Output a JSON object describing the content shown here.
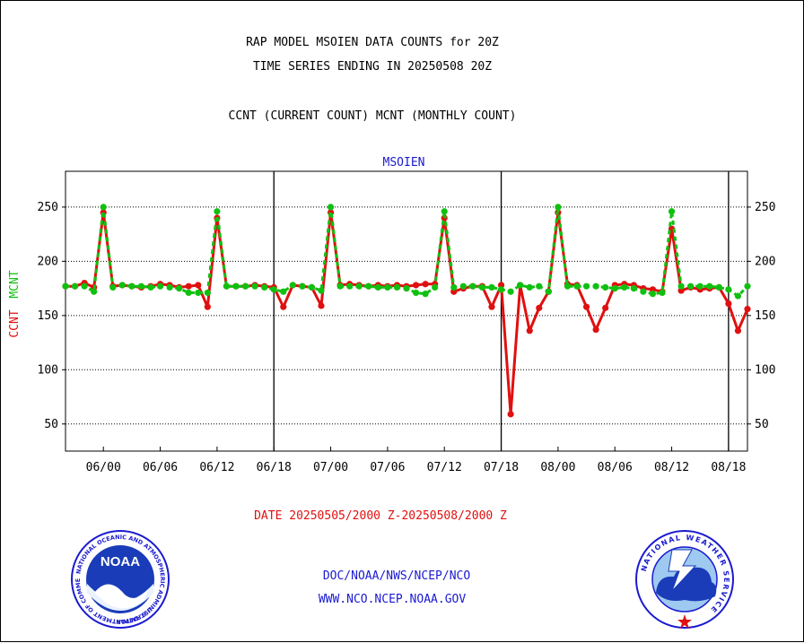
{
  "header": {
    "title_line1": "RAP MODEL MSOIEN DATA COUNTS for 20Z",
    "title_line2": "TIME SERIES ENDING IN 20250508 20Z",
    "subtitle": "CCNT (CURRENT COUNT) MCNT (MONTHLY COUNT)"
  },
  "footer": {
    "date_range": "DATE 20250505/2000 Z-20250508/2000 Z",
    "org_line": "DOC/NOAA/NWS/NCEP/NCO",
    "url_line": "WWW.NCO.NCEP.NOAA.GOV"
  },
  "logos": {
    "noaa_text": "NOAA",
    "noaa_ring": "NATIONAL OCEANIC AND ATMOSPHERIC ADMINISTRATION",
    "noaa_ring_bottom": "U.S. DEPARTMENT OF COMMERCE",
    "nws_ring": "NATIONAL WEATHER SERVICE"
  },
  "colors": {
    "ccnt": "#e01010",
    "mcnt": "#10c010",
    "text_blue": "#1a1ad0",
    "grid": "#000000"
  },
  "chart_data": {
    "type": "line",
    "title": "MSOIEN",
    "ylabel_ccnt": "CCNT",
    "ylabel_mcnt": "MCNT",
    "ylim": [
      25,
      283
    ],
    "yticks": [
      50,
      100,
      150,
      200,
      250
    ],
    "x_tick_labels": [
      "06/00",
      "06/06",
      "06/12",
      "06/18",
      "07/00",
      "07/06",
      "07/12",
      "07/18",
      "08/00",
      "08/06",
      "08/12",
      "08/18"
    ],
    "x_tick_hours": [
      4,
      10,
      16,
      22,
      28,
      34,
      40,
      46,
      52,
      58,
      64,
      70
    ],
    "x_range_hours": [
      0,
      72
    ],
    "day_boundaries_hours": [
      22,
      46,
      70
    ],
    "grid": true,
    "series": [
      {
        "name": "CCNT",
        "color": "#e01010",
        "x": [
          0,
          1,
          2,
          3,
          4,
          5,
          6,
          7,
          8,
          9,
          10,
          11,
          12,
          13,
          14,
          15,
          16,
          17,
          18,
          19,
          20,
          21,
          22,
          23,
          24,
          25,
          26,
          27,
          28,
          29,
          30,
          31,
          32,
          33,
          34,
          35,
          36,
          37,
          38,
          39,
          40,
          41,
          42,
          43,
          44,
          45,
          46,
          47,
          48,
          49,
          50,
          51,
          52,
          53,
          54,
          55,
          56,
          57,
          58,
          59,
          60,
          61,
          62,
          63,
          64,
          65,
          66,
          67,
          68,
          69,
          70,
          71,
          72
        ],
        "values": [
          177,
          177,
          180,
          176,
          245,
          177,
          178,
          177,
          176,
          177,
          179,
          178,
          176,
          177,
          178,
          158,
          240,
          177,
          177,
          177,
          178,
          177,
          176,
          158,
          178,
          177,
          176,
          159,
          245,
          178,
          179,
          178,
          177,
          178,
          177,
          178,
          177,
          178,
          179,
          179,
          240,
          172,
          175,
          177,
          177,
          158,
          178,
          59,
          178,
          136,
          157,
          172,
          245,
          179,
          178,
          158,
          137,
          157,
          178,
          179,
          178,
          175,
          174,
          172,
          230,
          173,
          176,
          174,
          175,
          176,
          161,
          136,
          156
        ]
      },
      {
        "name": "MCNT",
        "color": "#10c010",
        "x": [
          0,
          1,
          2,
          3,
          4,
          5,
          6,
          7,
          8,
          9,
          10,
          11,
          12,
          13,
          14,
          15,
          16,
          17,
          18,
          19,
          20,
          21,
          22,
          23,
          24,
          25,
          26,
          27,
          28,
          29,
          30,
          31,
          32,
          33,
          34,
          35,
          36,
          37,
          38,
          39,
          40,
          41,
          42,
          43,
          44,
          45,
          46,
          47,
          48,
          49,
          50,
          51,
          52,
          53,
          54,
          55,
          56,
          57,
          58,
          59,
          60,
          61,
          62,
          63,
          64,
          65,
          66,
          67,
          68,
          69,
          70,
          71,
          72
        ],
        "values": [
          177,
          177,
          177,
          172,
          250,
          176,
          178,
          177,
          177,
          176,
          177,
          176,
          175,
          171,
          171,
          171,
          246,
          177,
          177,
          177,
          177,
          176,
          174,
          172,
          178,
          177,
          176,
          173,
          250,
          177,
          177,
          177,
          177,
          176,
          176,
          176,
          175,
          171,
          170,
          176,
          246,
          176,
          177,
          177,
          176,
          176,
          174,
          172,
          178,
          176,
          177,
          172,
          250,
          177,
          177,
          177,
          177,
          176,
          175,
          176,
          175,
          172,
          170,
          171,
          246,
          177,
          177,
          177,
          177,
          176,
          174,
          168,
          177
        ]
      }
    ]
  }
}
